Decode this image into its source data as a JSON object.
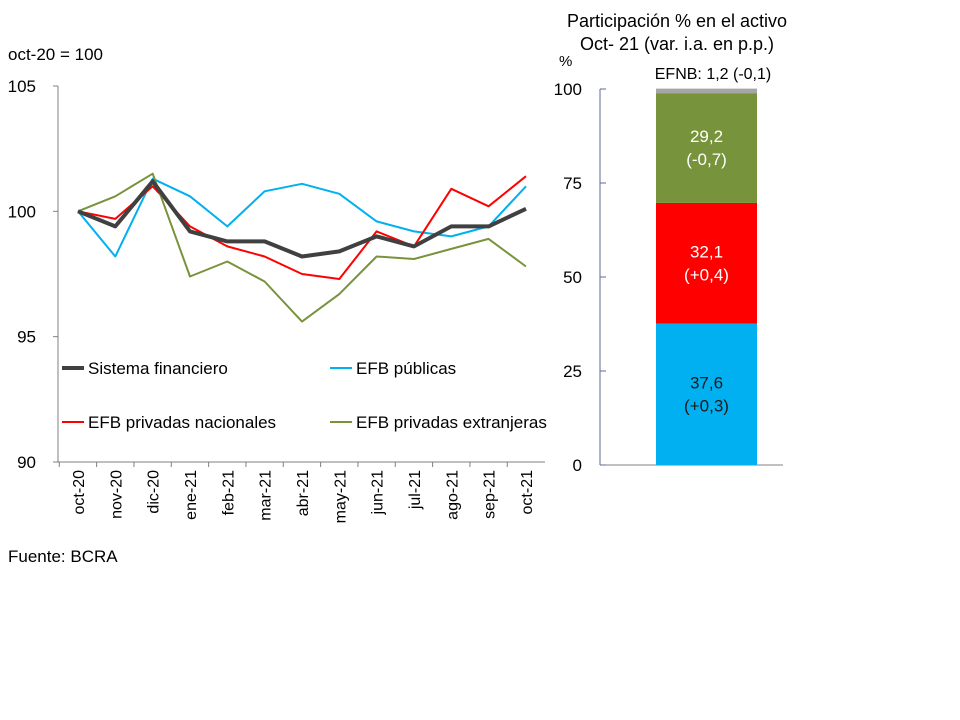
{
  "chart_data": [
    {
      "type": "line",
      "unit_label": "oct-20 = 100",
      "ylim": [
        90,
        105
      ],
      "yticks": [
        90,
        95,
        100,
        105
      ],
      "categories": [
        "oct-20",
        "nov-20",
        "dic-20",
        "ene-21",
        "feb-21",
        "mar-21",
        "abr-21",
        "may-21",
        "jun-21",
        "jul-21",
        "ago-21",
        "sep-21",
        "oct-21"
      ],
      "series": [
        {
          "name": "Sistema financiero",
          "color": "#404040",
          "width": 4,
          "values": [
            100,
            99.4,
            101.2,
            99.2,
            98.8,
            98.8,
            98.2,
            98.4,
            99.0,
            98.6,
            99.4,
            99.4,
            100.1
          ]
        },
        {
          "name": "EFB públicas",
          "color": "#00b0f0",
          "width": 2,
          "values": [
            100,
            98.2,
            101.3,
            100.6,
            99.4,
            100.8,
            101.1,
            100.7,
            99.6,
            99.2,
            99.0,
            99.4,
            101.0
          ]
        },
        {
          "name": "EFB privadas nacionales",
          "color": "#ff0000",
          "width": 2,
          "values": [
            100,
            99.7,
            101.0,
            99.4,
            98.6,
            98.2,
            97.5,
            97.3,
            99.2,
            98.6,
            100.9,
            100.2,
            101.4
          ]
        },
        {
          "name": "EFB privadas extranjeras",
          "color": "#77933c",
          "width": 2,
          "values": [
            100,
            100.6,
            101.5,
            97.4,
            98.0,
            97.2,
            95.6,
            96.7,
            98.2,
            98.1,
            98.5,
            98.9,
            97.8
          ]
        }
      ],
      "source": "Fuente: BCRA"
    },
    {
      "type": "bar",
      "stacked": true,
      "title_line1": "Participación % en el activo",
      "title_line2": "Oct- 21 (var. i.a. en p.p.)",
      "ylabel": "%",
      "ylim": [
        0,
        100
      ],
      "yticks": [
        0,
        25,
        50,
        75,
        100
      ],
      "segments": [
        {
          "name": "EFB públicas",
          "value": 37.6,
          "label": "37,6",
          "change": "(+0,3)",
          "color": "#00b0f0",
          "text_color": "#1a1a1a"
        },
        {
          "name": "EFB privadas nacionales",
          "value": 32.1,
          "label": "32,1",
          "change": "(+0,4)",
          "color": "#ff0000",
          "text_color": "#ffffff"
        },
        {
          "name": "EFB privadas extranjeras",
          "value": 29.2,
          "label": "29,2",
          "change": "(-0,7)",
          "color": "#77933c",
          "text_color": "#ffffff"
        },
        {
          "name": "EFNB",
          "value": 1.2,
          "label": "EFNB: 1,2 (-0,1)",
          "color": "#a6a6a6"
        }
      ]
    }
  ]
}
